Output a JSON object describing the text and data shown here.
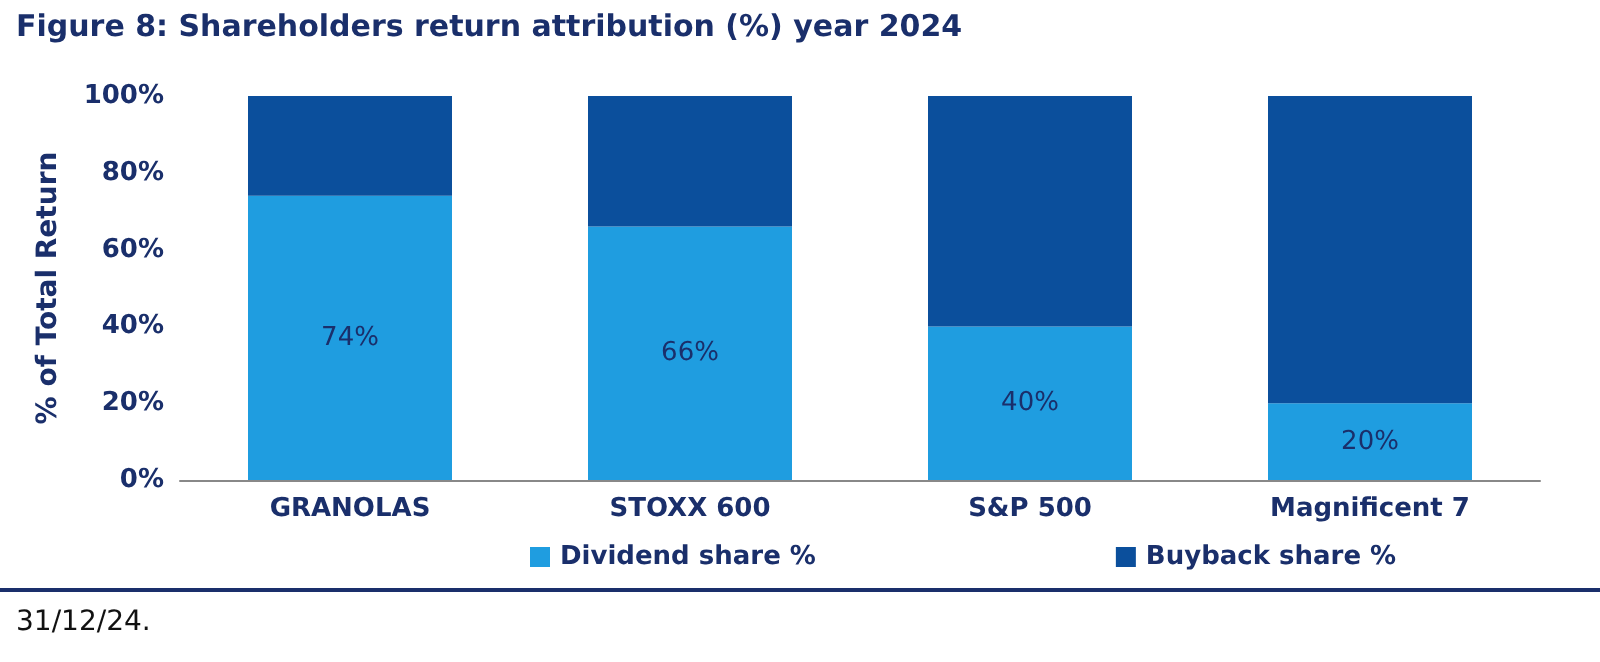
{
  "chart_data": {
    "type": "bar",
    "title": "Figure 8: Shareholders return attribution (%) year 2024",
    "ylabel": "% of Total Return",
    "categories": [
      "GRANOLAS",
      "STOXX 600",
      "S&P 500",
      "Magnificent 7"
    ],
    "series": [
      {
        "name": "Dividend share %",
        "color": "#1f9de0",
        "values": [
          74,
          66,
          40,
          20
        ],
        "value_labels": [
          "74%",
          "66%",
          "40%",
          "20%"
        ]
      },
      {
        "name": "Buyback share %",
        "color": "#0b4f9c",
        "values": [
          26,
          34,
          60,
          80
        ]
      }
    ],
    "stacked": true,
    "ylim": [
      0,
      100
    ],
    "yticks": [
      {
        "value": 0,
        "label": "0%"
      },
      {
        "value": 20,
        "label": "20%"
      },
      {
        "value": 40,
        "label": "40%"
      },
      {
        "value": 60,
        "label": "60%"
      },
      {
        "value": 80,
        "label": "80%"
      },
      {
        "value": 100,
        "label": "100%"
      }
    ],
    "grid": false,
    "legend": "bottom",
    "annotations": [
      "31/12/24."
    ]
  }
}
